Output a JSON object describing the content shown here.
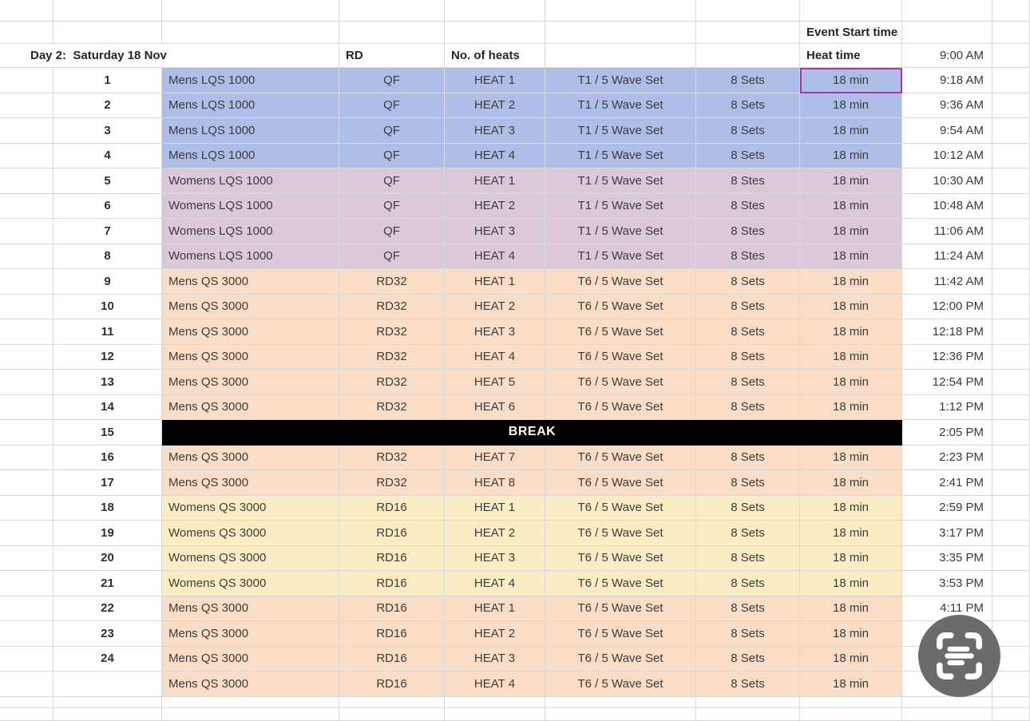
{
  "sheet": {
    "pre_header": {
      "event_start_time_label": "Event Start time"
    },
    "header": {
      "day_label": "Day 2:  Saturday 18 Nov",
      "rd_label": "RD",
      "heats_label": "No. of heats",
      "heat_time_label": "Heat time",
      "first_start_time": "9:00 AM"
    },
    "break_label": "BREAK",
    "colors": {
      "blue": "#aebee8",
      "mauve": "#dbc8d8",
      "peach": "#f9ddc7",
      "yellow": "#faedc4",
      "break_bg": "#000000",
      "selection_border": "#a43a9d",
      "gridline": "#d9d9d9"
    },
    "rows": [
      {
        "num": "1",
        "event": "Mens LQS 1000",
        "rd": "QF",
        "heat": "HEAT 1",
        "wave": "T1 / 5 Wave Set",
        "sets": "8 Sets",
        "heat_time": "18 min",
        "start": "9:18 AM",
        "band": "blue",
        "selected": true
      },
      {
        "num": "2",
        "event": "Mens LQS 1000",
        "rd": "QF",
        "heat": "HEAT 2",
        "wave": "T1 / 5 Wave Set",
        "sets": "8 Sets",
        "heat_time": "18 min",
        "start": "9:36 AM",
        "band": "blue"
      },
      {
        "num": "3",
        "event": "Mens LQS 1000",
        "rd": "QF",
        "heat": "HEAT 3",
        "wave": "T1 / 5 Wave Set",
        "sets": "8 Sets",
        "heat_time": "18 min",
        "start": "9:54 AM",
        "band": "blue"
      },
      {
        "num": "4",
        "event": "Mens LQS 1000",
        "rd": "QF",
        "heat": "HEAT 4",
        "wave": "T1 / 5 Wave Set",
        "sets": "8 Sets",
        "heat_time": "18 min",
        "start": "10:12 AM",
        "band": "blue"
      },
      {
        "num": "5",
        "event": "Womens LQS 1000",
        "rd": "QF",
        "heat": "HEAT 1",
        "wave": "T1 / 5 Wave Set",
        "sets": "8 Stes",
        "heat_time": "18 min",
        "start": "10:30 AM",
        "band": "mauve"
      },
      {
        "num": "6",
        "event": "Womens LQS 1000",
        "rd": "QF",
        "heat": "HEAT 2",
        "wave": "T1 / 5 Wave Set",
        "sets": "8 Stes",
        "heat_time": "18 min",
        "start": "10:48 AM",
        "band": "mauve"
      },
      {
        "num": "7",
        "event": "Womens LQS 1000",
        "rd": "QF",
        "heat": "HEAT 3",
        "wave": "T1 / 5 Wave Set",
        "sets": "8 Stes",
        "heat_time": "18 min",
        "start": "11:06 AM",
        "band": "mauve"
      },
      {
        "num": "8",
        "event": "Womens LQS 1000",
        "rd": "QF",
        "heat": "HEAT 4",
        "wave": "T1 / 5 Wave Set",
        "sets": "8 Stes",
        "heat_time": "18 min",
        "start": "11:24 AM",
        "band": "mauve"
      },
      {
        "num": "9",
        "event": "Mens QS 3000",
        "rd": "RD32",
        "heat": "HEAT 1",
        "wave": "T6 / 5 Wave Set",
        "sets": "8 Sets",
        "heat_time": "18 min",
        "start": "11:42 AM",
        "band": "peach"
      },
      {
        "num": "10",
        "event": "Mens QS 3000",
        "rd": "RD32",
        "heat": "HEAT 2",
        "wave": "T6 / 5 Wave Set",
        "sets": "8 Sets",
        "heat_time": "18 min",
        "start": "12:00 PM",
        "band": "peach"
      },
      {
        "num": "11",
        "event": "Mens QS 3000",
        "rd": "RD32",
        "heat": "HEAT 3",
        "wave": "T6 / 5 Wave Set",
        "sets": "8 Sets",
        "heat_time": "18 min",
        "start": "12:18 PM",
        "band": "peach"
      },
      {
        "num": "12",
        "event": "Mens QS 3000",
        "rd": "RD32",
        "heat": "HEAT 4",
        "wave": "T6 / 5 Wave Set",
        "sets": "8 Sets",
        "heat_time": "18 min",
        "start": "12:36 PM",
        "band": "peach"
      },
      {
        "num": "13",
        "event": "Mens QS 3000",
        "rd": "RD32",
        "heat": "HEAT 5",
        "wave": "T6 / 5 Wave Set",
        "sets": "8 Sets",
        "heat_time": "18 min",
        "start": "12:54 PM",
        "band": "peach"
      },
      {
        "num": "14",
        "event": "Mens QS 3000",
        "rd": "RD32",
        "heat": "HEAT 6",
        "wave": "T6 / 5 Wave Set",
        "sets": "8 Sets",
        "heat_time": "18 min",
        "start": "1:12 PM",
        "band": "peach"
      },
      {
        "num": "15",
        "event": "",
        "rd": "",
        "heat": "",
        "wave": "",
        "sets": "",
        "heat_time": "",
        "start": "2:05 PM",
        "band": "break"
      },
      {
        "num": "16",
        "event": "Mens QS 3000",
        "rd": "RD32",
        "heat": "HEAT 7",
        "wave": "T6 / 5 Wave Set",
        "sets": "8 Sets",
        "heat_time": "18 min",
        "start": "2:23 PM",
        "band": "peach"
      },
      {
        "num": "17",
        "event": "Mens QS 3000",
        "rd": "RD32",
        "heat": "HEAT 8",
        "wave": "T6 / 5 Wave Set",
        "sets": "8 Sets",
        "heat_time": "18 min",
        "start": "2:41 PM",
        "band": "peach"
      },
      {
        "num": "18",
        "event": "Womens QS 3000",
        "rd": "RD16",
        "heat": "HEAT 1",
        "wave": "T6 / 5 Wave Set",
        "sets": "8 Sets",
        "heat_time": "18 min",
        "start": "2:59 PM",
        "band": "yellow"
      },
      {
        "num": "19",
        "event": "Womens QS 3000",
        "rd": "RD16",
        "heat": "HEAT 2",
        "wave": "T6 / 5 Wave Set",
        "sets": "8 Sets",
        "heat_time": "18 min",
        "start": "3:17 PM",
        "band": "yellow"
      },
      {
        "num": "20",
        "event": "Womens QS 3000",
        "rd": "RD16",
        "heat": "HEAT 3",
        "wave": "T6 / 5 Wave Set",
        "sets": "8 Sets",
        "heat_time": "18 min",
        "start": "3:35 PM",
        "band": "yellow"
      },
      {
        "num": "21",
        "event": "Womens QS 3000",
        "rd": "RD16",
        "heat": "HEAT 4",
        "wave": "T6 / 5 Wave Set",
        "sets": "8 Sets",
        "heat_time": "18 min",
        "start": "3:53 PM",
        "band": "yellow"
      },
      {
        "num": "22",
        "event": "Mens QS 3000",
        "rd": "RD16",
        "heat": "HEAT 1",
        "wave": "T6 / 5 Wave Set",
        "sets": "8 Sets",
        "heat_time": "18 min",
        "start": "4:11 PM",
        "band": "peach"
      },
      {
        "num": "23",
        "event": "Mens QS 3000",
        "rd": "RD16",
        "heat": "HEAT 2",
        "wave": "T6 / 5 Wave Set",
        "sets": "8 Sets",
        "heat_time": "18 min",
        "start": "",
        "band": "peach"
      },
      {
        "num": "24",
        "event": "Mens QS 3000",
        "rd": "RD16",
        "heat": "HEAT 3",
        "wave": "T6 / 5 Wave Set",
        "sets": "8 Sets",
        "heat_time": "18 min",
        "start": "",
        "band": "peach"
      },
      {
        "num": "",
        "event": "Mens QS 3000",
        "rd": "RD16",
        "heat": "HEAT 4",
        "wave": "T6 / 5 Wave Set",
        "sets": "8 Sets",
        "heat_time": "18 min",
        "start": "",
        "band": "peach"
      }
    ],
    "overlay": {
      "scan_icon": "scan-icon"
    }
  }
}
